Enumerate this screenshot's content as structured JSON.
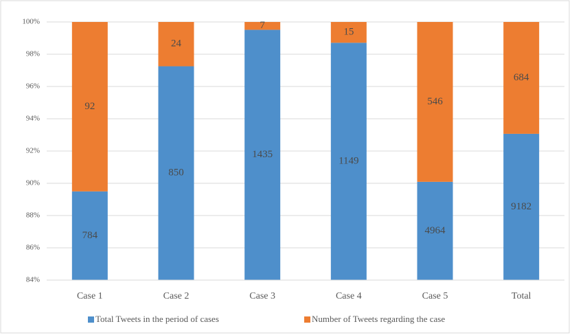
{
  "chart_data": {
    "type": "bar",
    "stacking": "percent",
    "categories": [
      "Case 1",
      "Case 2",
      "Case 3",
      "Case 4",
      "Case 5",
      "Total"
    ],
    "series": [
      {
        "name": "Total Tweets in the period of cases",
        "color": "#4e8fcb",
        "values": [
          784,
          850,
          1435,
          1149,
          4964,
          9182
        ]
      },
      {
        "name": "Number of Tweets regarding the case",
        "color": "#ed7d31",
        "values": [
          92,
          24,
          7,
          15,
          546,
          684
        ]
      }
    ],
    "ylim": [
      84,
      100
    ],
    "yticks": [
      {
        "value": 84,
        "label": "84%"
      },
      {
        "value": 86,
        "label": "86%"
      },
      {
        "value": 88,
        "label": "88%"
      },
      {
        "value": 90,
        "label": "90%"
      },
      {
        "value": 92,
        "label": "92%"
      },
      {
        "value": 94,
        "label": "94%"
      },
      {
        "value": 96,
        "label": "96%"
      },
      {
        "value": 98,
        "label": "98%"
      },
      {
        "value": 100,
        "label": "100%"
      }
    ],
    "grid": true,
    "legend": "bottom"
  }
}
